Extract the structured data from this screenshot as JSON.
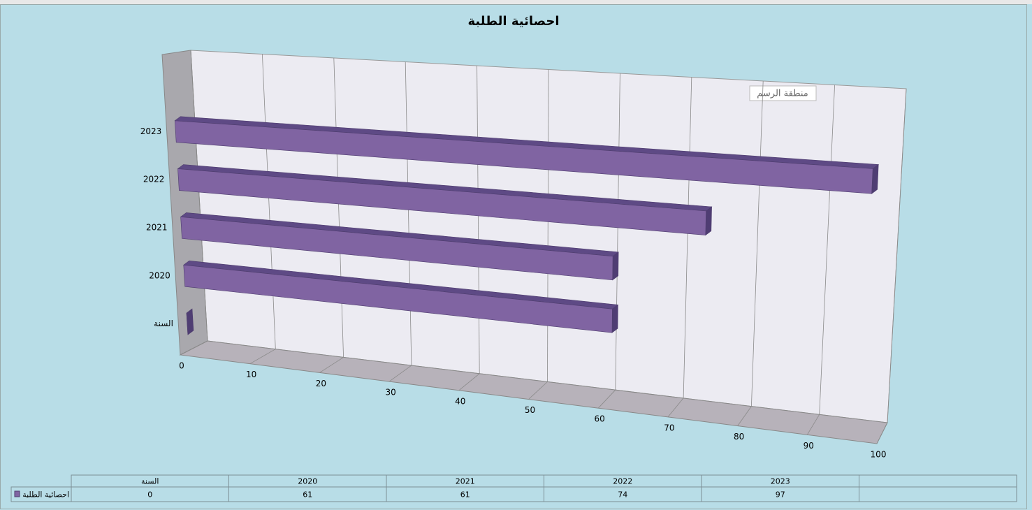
{
  "chart_data": {
    "type": "bar3d",
    "orientation": "horizontal",
    "title": "احصائية الطلبة",
    "annotation": "منطقة الرسم",
    "categories": [
      "السنة",
      "2020",
      "2021",
      "2022",
      "2023",
      null
    ],
    "series": [
      {
        "name": "احصائية الطلبة",
        "color": "#8064a2",
        "values": [
          0,
          61,
          61,
          74,
          97,
          null
        ]
      }
    ],
    "xlim": [
      0,
      100
    ],
    "xticks": [
      0,
      10,
      20,
      30,
      40,
      50,
      60,
      70,
      80,
      90,
      100
    ],
    "grid": true,
    "data_table": true
  }
}
